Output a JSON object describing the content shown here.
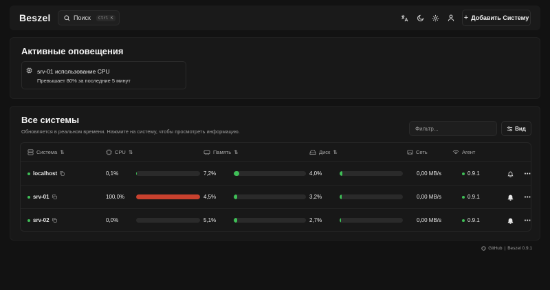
{
  "header": {
    "logo": "Beszel",
    "search_label": "Поиск",
    "search_kbd_ctrl": "Ctrl",
    "search_kbd_key": "K",
    "add_system_label": "Добавить Систему"
  },
  "alerts": {
    "title": "Активные оповещения",
    "items": [
      {
        "title": "srv-01 использование CPU",
        "description": "Превышает 80% за последние 5 минут"
      }
    ]
  },
  "systems": {
    "title": "Все системы",
    "subtitle": "Обновляется в реальном времени. Нажмите на систему, чтобы просмотреть информацию.",
    "filter_placeholder": "Фильтр...",
    "view_label": "Вид",
    "columns": {
      "system": "Система",
      "cpu": "CPU",
      "memory": "Память",
      "disk": "Диск",
      "network": "Сеть",
      "agent": "Агент"
    },
    "rows": [
      {
        "name": "localhost",
        "cpu": "0,1%",
        "cpu_fraction": 0.001,
        "memory": "7,2%",
        "memory_fraction": 0.072,
        "disk": "4,0%",
        "disk_fraction": 0.04,
        "network": "0,00 MB/s",
        "agent": "0.9.1",
        "cpu_color": "#3fbf57",
        "alert_active": false
      },
      {
        "name": "srv-01",
        "cpu": "100,0%",
        "cpu_fraction": 1.0,
        "memory": "4,5%",
        "memory_fraction": 0.045,
        "disk": "3,2%",
        "disk_fraction": 0.032,
        "network": "0,00 MB/s",
        "agent": "0.9.1",
        "cpu_color": "#c8412e",
        "alert_active": true
      },
      {
        "name": "srv-02",
        "cpu": "0,0%",
        "cpu_fraction": 0.0,
        "memory": "5,1%",
        "memory_fraction": 0.051,
        "disk": "2,7%",
        "disk_fraction": 0.027,
        "network": "0,00 MB/s",
        "agent": "0.9.1",
        "cpu_color": "#3fbf57",
        "alert_active": true
      }
    ]
  },
  "footer": {
    "github_label": "GitHub",
    "separator": "|",
    "version": "Beszel 0.9.1"
  },
  "colors": {
    "ok": "#3fbf57",
    "critical": "#c8412e"
  }
}
